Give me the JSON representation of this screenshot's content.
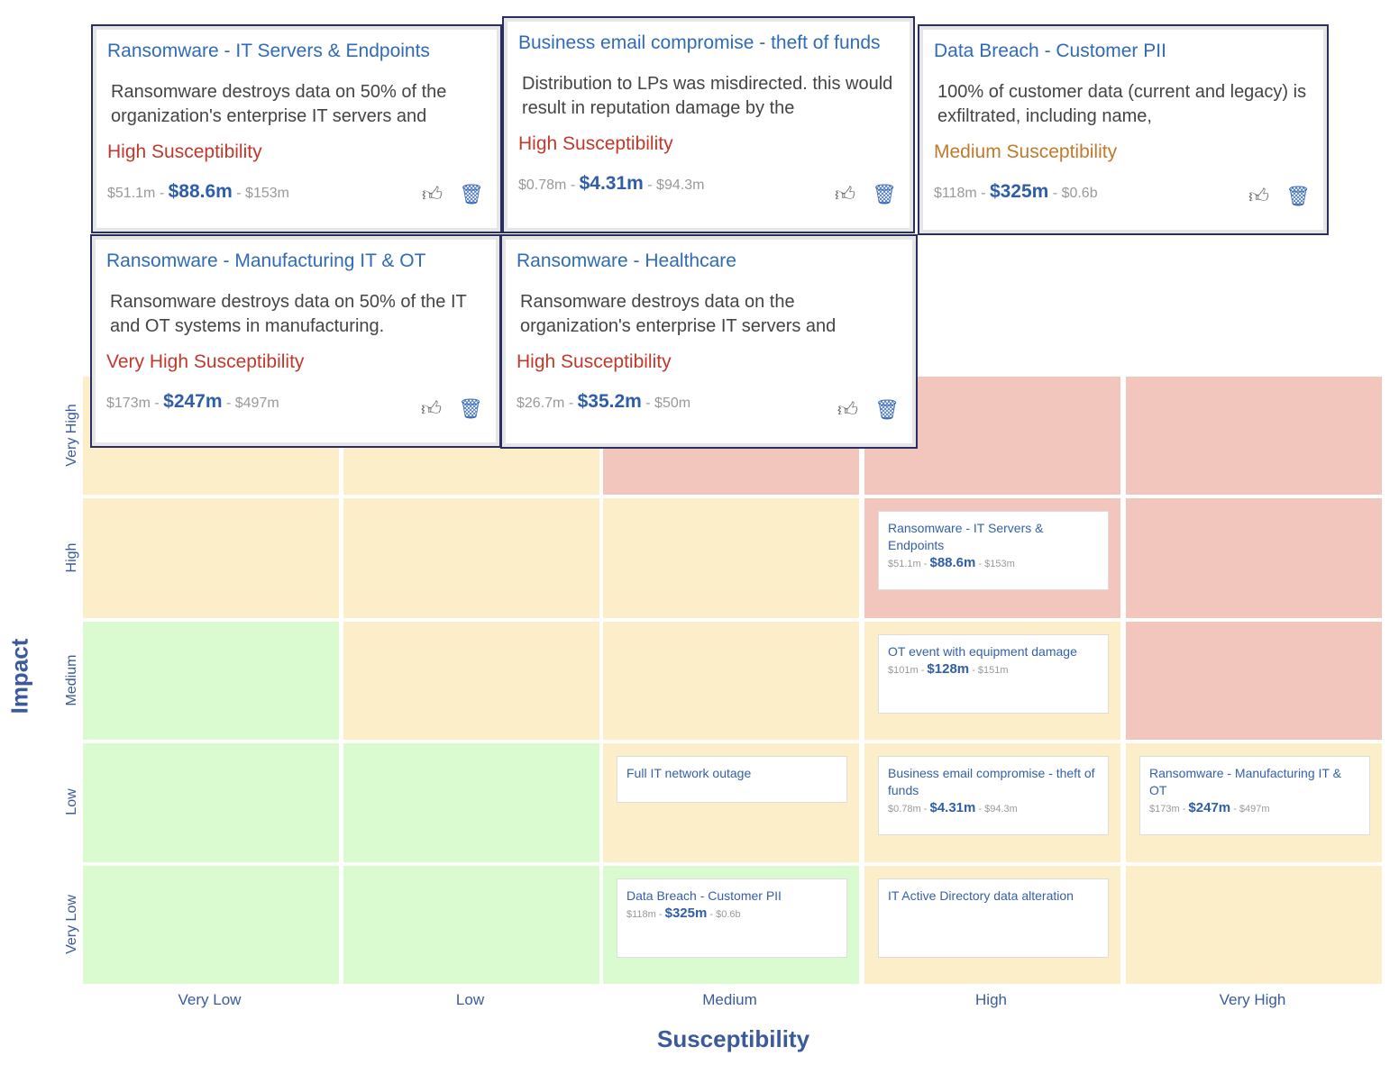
{
  "axes": {
    "x_title": "Susceptibility",
    "y_title": "Impact"
  },
  "columns": [
    "Very Low",
    "Low",
    "Medium",
    "High",
    "Very High"
  ],
  "rows": [
    "Very High",
    "High",
    "Medium",
    "Low",
    "Very Low"
  ],
  "colors": {
    "yellow": "#fbeec9",
    "green": "#dafbd0",
    "red": "#f2c5bd"
  },
  "grid": [
    [
      "Y",
      "Y",
      "R",
      "R",
      "R"
    ],
    [
      "Y",
      "Y",
      "Y",
      "R",
      "R"
    ],
    [
      "G",
      "Y",
      "Y",
      "Y",
      "R"
    ],
    [
      "G",
      "G",
      "Y",
      "Y",
      "Y"
    ],
    [
      "G",
      "G",
      "G",
      "Y",
      "Y"
    ]
  ],
  "matrix_cards": [
    {
      "title": "Ransomware - IT Servers & Endpoints",
      "low": "$51.1m",
      "mid": "$88.6m",
      "high": "$153m",
      "row": 1,
      "col": 3
    },
    {
      "title": "OT event with equipment damage",
      "low": "$101m",
      "mid": "$128m",
      "high": "$151m",
      "row": 2,
      "col": 3
    },
    {
      "title": "Full IT network outage",
      "row": 3,
      "col": 2
    },
    {
      "title": "Business email compromise - theft of funds",
      "low": "$0.78m",
      "mid": "$4.31m",
      "high": "$94.3m",
      "row": 3,
      "col": 3
    },
    {
      "title": "Ransomware - Manufacturing IT & OT",
      "low": "$173m",
      "mid": "$247m",
      "high": "$497m",
      "row": 3,
      "col": 4
    },
    {
      "title": "Data Breach - Customer PII",
      "low": "$118m",
      "mid": "$325m",
      "high": "$0.6b",
      "row": 4,
      "col": 2
    },
    {
      "title": "IT Active Directory data alteration",
      "row": 4,
      "col": 3
    }
  ],
  "popup_cards": [
    {
      "title": "Ransomware - IT Servers & Endpoints",
      "desc": "Ransomware destroys data on 50% of the organization's enterprise IT servers and",
      "susc": "High Susceptibility",
      "susc_color": "#c0392b",
      "low": "$51.1m",
      "mid": "$88.6m",
      "high": "$153m"
    },
    {
      "title": "Business email compromise - theft of funds",
      "desc": "Distribution to LPs was misdirected. this would result in reputation damage by the",
      "susc": "High Susceptibility",
      "susc_color": "#c0392b",
      "low": "$0.78m",
      "mid": "$4.31m",
      "high": "$94.3m"
    },
    {
      "title": "Data Breach - Customer PII",
      "desc": "100% of customer data (current and legacy) is exfiltrated, including name,",
      "susc": "Medium Susceptibility",
      "susc_color": "#c07a2b",
      "low": "$118m",
      "mid": "$325m",
      "high": "$0.6b"
    },
    {
      "title": "Ransomware - Manufacturing IT & OT",
      "desc": "Ransomware destroys data on 50% of the IT and OT systems in manufacturing.",
      "susc": "Very High Susceptibility",
      "susc_color": "#c0392b",
      "low": "$173m",
      "mid": "$247m",
      "high": "$497m"
    },
    {
      "title": "Ransomware - Healthcare",
      "desc": "Ransomware destroys data on the organization's enterprise IT servers and",
      "susc": "High Susceptibility",
      "susc_color": "#c0392b",
      "low": "$26.7m",
      "mid": "$35.2m",
      "high": "$50m"
    }
  ],
  "icons": {
    "like": "thumbs-up-icon",
    "delete": "trash-icon"
  }
}
